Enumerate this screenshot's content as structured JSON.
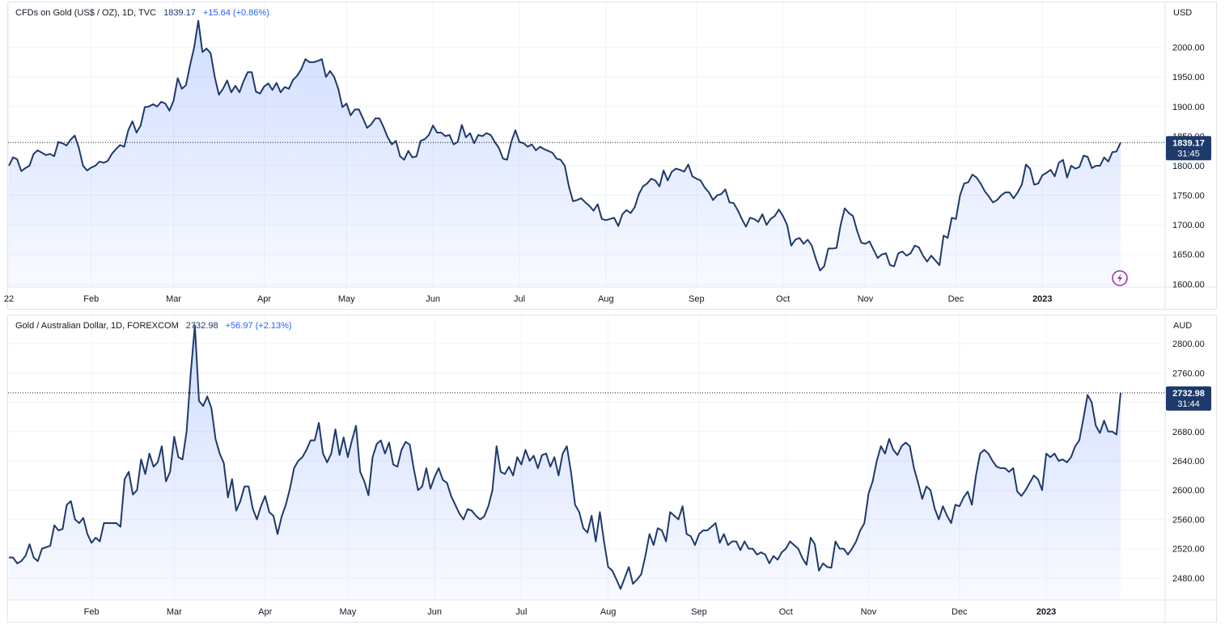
{
  "chart_data": [
    {
      "type": "area",
      "symbol": "CFDs on Gold (US$ / OZ), 1D, TVC",
      "last_price": "1839.17",
      "change": "+15.64 (+0.86%)",
      "currency": "USD",
      "last_price_value": 1839.17,
      "countdown": "31:45",
      "ylim": [
        1595,
        2065
      ],
      "y_ticks": [
        2000,
        1950,
        1900,
        1850,
        1800,
        1750,
        1700,
        1650,
        1600
      ],
      "y_tick_labels": [
        "2000.00",
        "1950.00",
        "1900.00",
        "1850.00",
        "1800.00",
        "1750.00",
        "1700.00",
        "1650.00",
        "1600.00"
      ],
      "x_ticks": [
        {
          "label": "22",
          "index": 0,
          "year": false
        },
        {
          "label": "Feb",
          "index": 20,
          "year": false
        },
        {
          "label": "Mar",
          "index": 40,
          "year": false
        },
        {
          "label": "Apr",
          "index": 62,
          "year": false
        },
        {
          "label": "May",
          "index": 82,
          "year": false
        },
        {
          "label": "Jun",
          "index": 103,
          "year": false
        },
        {
          "label": "Jul",
          "index": 124,
          "year": false
        },
        {
          "label": "Aug",
          "index": 145,
          "year": false
        },
        {
          "label": "Sep",
          "index": 167,
          "year": false
        },
        {
          "label": "Oct",
          "index": 188,
          "year": false
        },
        {
          "label": "Nov",
          "index": 208,
          "year": false
        },
        {
          "label": "Dec",
          "index": 230,
          "year": false
        },
        {
          "label": "2023",
          "index": 251,
          "year": true
        }
      ],
      "values": [
        1800,
        1814,
        1811,
        1791,
        1796,
        1800,
        1820,
        1826,
        1822,
        1818,
        1820,
        1816,
        1840,
        1838,
        1834,
        1844,
        1851,
        1830,
        1800,
        1792,
        1797,
        1800,
        1807,
        1805,
        1808,
        1820,
        1828,
        1835,
        1832,
        1860,
        1875,
        1856,
        1868,
        1899,
        1900,
        1904,
        1900,
        1908,
        1905,
        1893,
        1910,
        1948,
        1930,
        1936,
        1970,
        2000,
        2045,
        1992,
        1998,
        1990,
        1950,
        1920,
        1930,
        1944,
        1924,
        1935,
        1924,
        1943,
        1958,
        1958,
        1925,
        1922,
        1934,
        1939,
        1928,
        1940,
        1924,
        1933,
        1930,
        1945,
        1952,
        1963,
        1980,
        1975,
        1975,
        1977,
        1980,
        1950,
        1960,
        1950,
        1930,
        1899,
        1905,
        1885,
        1895,
        1895,
        1880,
        1864,
        1870,
        1880,
        1880,
        1865,
        1848,
        1836,
        1842,
        1816,
        1810,
        1825,
        1814,
        1816,
        1842,
        1845,
        1852,
        1868,
        1856,
        1856,
        1850,
        1852,
        1836,
        1840,
        1869,
        1848,
        1855,
        1838,
        1852,
        1850,
        1855,
        1852,
        1840,
        1830,
        1812,
        1810,
        1840,
        1860,
        1840,
        1838,
        1832,
        1836,
        1826,
        1832,
        1828,
        1825,
        1822,
        1812,
        1810,
        1800,
        1765,
        1740,
        1742,
        1745,
        1738,
        1732,
        1724,
        1735,
        1710,
        1708,
        1710,
        1712,
        1698,
        1718,
        1725,
        1720,
        1730,
        1752,
        1765,
        1770,
        1778,
        1775,
        1765,
        1792,
        1775,
        1790,
        1795,
        1793,
        1790,
        1802,
        1782,
        1778,
        1775,
        1763,
        1755,
        1742,
        1750,
        1752,
        1760,
        1738,
        1737,
        1725,
        1710,
        1697,
        1712,
        1710,
        1705,
        1718,
        1700,
        1710,
        1715,
        1726,
        1715,
        1700,
        1665,
        1675,
        1678,
        1668,
        1675,
        1665,
        1642,
        1623,
        1630,
        1660,
        1660,
        1661,
        1700,
        1728,
        1720,
        1715,
        1690,
        1670,
        1668,
        1672,
        1658,
        1644,
        1650,
        1652,
        1632,
        1630,
        1652,
        1655,
        1648,
        1652,
        1665,
        1662,
        1648,
        1638,
        1648,
        1640,
        1632,
        1682,
        1678,
        1712,
        1710,
        1750,
        1770,
        1772,
        1785,
        1780,
        1770,
        1757,
        1748,
        1738,
        1742,
        1750,
        1755,
        1755,
        1745,
        1755,
        1768,
        1802,
        1795,
        1768,
        1770,
        1784,
        1788,
        1793,
        1782,
        1805,
        1810,
        1780,
        1800,
        1795,
        1798,
        1817,
        1815,
        1796,
        1800,
        1800,
        1814,
        1807,
        1823,
        1824,
        1839.17
      ]
    },
    {
      "type": "area",
      "symbol": "Gold / Australian Dollar, 1D, FOREXCOM",
      "last_price": "2732.98",
      "change": "+56.97 (+2.13%)",
      "currency": "AUD",
      "last_price_value": 2732.98,
      "countdown": "31:44",
      "ylim": [
        2450,
        2830
      ],
      "y_ticks": [
        2800,
        2760,
        2720,
        2680,
        2640,
        2600,
        2560,
        2520,
        2480
      ],
      "y_tick_labels": [
        "2800.00",
        "2760.00",
        "2720.00",
        "2680.00",
        "2640.00",
        "2600.00",
        "2560.00",
        "2520.00",
        "2480.00"
      ],
      "x_ticks": [
        {
          "label": "Feb",
          "index": 20,
          "year": false
        },
        {
          "label": "Mar",
          "index": 40,
          "year": false
        },
        {
          "label": "Apr",
          "index": 62,
          "year": false
        },
        {
          "label": "May",
          "index": 82,
          "year": false
        },
        {
          "label": "Jun",
          "index": 103,
          "year": false
        },
        {
          "label": "Jul",
          "index": 124,
          "year": false
        },
        {
          "label": "Aug",
          "index": 145,
          "year": false
        },
        {
          "label": "Sep",
          "index": 167,
          "year": false
        },
        {
          "label": "Oct",
          "index": 188,
          "year": false
        },
        {
          "label": "Nov",
          "index": 208,
          "year": false
        },
        {
          "label": "Dec",
          "index": 230,
          "year": false
        },
        {
          "label": "2023",
          "index": 251,
          "year": true
        }
      ],
      "values": [
        2508,
        2508,
        2500,
        2503,
        2510,
        2526,
        2508,
        2503,
        2520,
        2522,
        2524,
        2552,
        2545,
        2547,
        2580,
        2585,
        2560,
        2555,
        2562,
        2540,
        2528,
        2535,
        2530,
        2555,
        2555,
        2555,
        2555,
        2550,
        2615,
        2625,
        2594,
        2600,
        2642,
        2622,
        2650,
        2632,
        2638,
        2660,
        2612,
        2625,
        2673,
        2645,
        2642,
        2680,
        2760,
        2825,
        2722,
        2715,
        2728,
        2712,
        2670,
        2650,
        2637,
        2590,
        2615,
        2572,
        2585,
        2605,
        2605,
        2575,
        2560,
        2578,
        2592,
        2570,
        2565,
        2540,
        2564,
        2580,
        2602,
        2630,
        2640,
        2645,
        2655,
        2668,
        2668,
        2692,
        2650,
        2638,
        2650,
        2683,
        2648,
        2672,
        2645,
        2668,
        2688,
        2625,
        2612,
        2593,
        2645,
        2663,
        2668,
        2650,
        2665,
        2635,
        2632,
        2655,
        2666,
        2662,
        2628,
        2600,
        2605,
        2630,
        2602,
        2618,
        2630,
        2614,
        2610,
        2592,
        2580,
        2568,
        2560,
        2574,
        2572,
        2565,
        2560,
        2564,
        2578,
        2600,
        2660,
        2625,
        2622,
        2632,
        2620,
        2645,
        2635,
        2655,
        2640,
        2647,
        2630,
        2648,
        2650,
        2632,
        2645,
        2620,
        2650,
        2660,
        2625,
        2580,
        2570,
        2548,
        2542,
        2565,
        2530,
        2570,
        2530,
        2495,
        2490,
        2478,
        2465,
        2480,
        2495,
        2472,
        2478,
        2485,
        2510,
        2540,
        2525,
        2548,
        2545,
        2530,
        2570,
        2565,
        2560,
        2578,
        2540,
        2537,
        2525,
        2540,
        2545,
        2545,
        2550,
        2555,
        2528,
        2540,
        2525,
        2530,
        2530,
        2518,
        2530,
        2520,
        2520,
        2512,
        2515,
        2512,
        2500,
        2510,
        2505,
        2515,
        2520,
        2530,
        2525,
        2520,
        2507,
        2498,
        2535,
        2526,
        2490,
        2500,
        2495,
        2494,
        2530,
        2520,
        2520,
        2512,
        2520,
        2530,
        2545,
        2555,
        2595,
        2612,
        2640,
        2660,
        2650,
        2670,
        2655,
        2648,
        2660,
        2665,
        2660,
        2630,
        2610,
        2588,
        2605,
        2600,
        2575,
        2560,
        2578,
        2565,
        2555,
        2580,
        2578,
        2590,
        2598,
        2580,
        2620,
        2650,
        2655,
        2650,
        2640,
        2632,
        2630,
        2630,
        2625,
        2630,
        2598,
        2592,
        2600,
        2610,
        2620,
        2615,
        2600,
        2650,
        2645,
        2650,
        2640,
        2642,
        2638,
        2645,
        2660,
        2668,
        2698,
        2730,
        2720,
        2688,
        2678,
        2695,
        2680,
        2680,
        2676,
        2732.98
      ]
    }
  ]
}
